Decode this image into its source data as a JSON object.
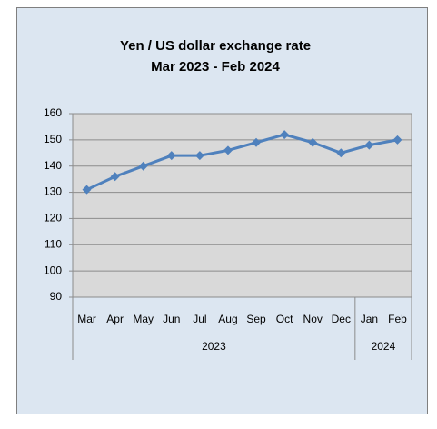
{
  "chart_data": {
    "type": "line",
    "title": "Yen / US dollar exchange rate",
    "subtitle": "Mar 2023 - Feb 2024",
    "category_groups": [
      {
        "label": "2023",
        "categories": [
          "Mar",
          "Apr",
          "May",
          "Jun",
          "Jul",
          "Aug",
          "Sep",
          "Oct",
          "Nov",
          "Dec"
        ]
      },
      {
        "label": "2024",
        "categories": [
          "Jan",
          "Feb"
        ]
      }
    ],
    "series": [
      {
        "color": "#4f81bd",
        "values": [
          131,
          136,
          140,
          144,
          144,
          146,
          149,
          152,
          149,
          145,
          148,
          150
        ]
      }
    ],
    "ylim": [
      90,
      160
    ],
    "yticks": [
      90,
      100,
      110,
      120,
      130,
      140,
      150,
      160
    ],
    "grid": true
  }
}
